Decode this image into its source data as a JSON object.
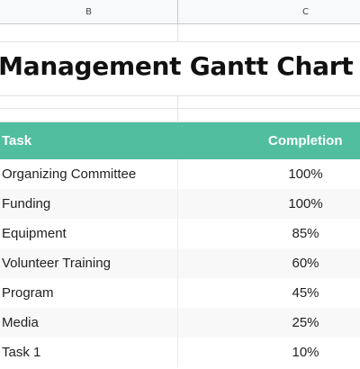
{
  "columns": {
    "b": "B",
    "c": "C"
  },
  "title": "nt Management Gantt Chart",
  "table": {
    "headers": {
      "task": "Task",
      "completion": "Completion"
    },
    "rows": [
      {
        "task": "Organizing Committee",
        "completion": "100%"
      },
      {
        "task": "Funding",
        "completion": "100%"
      },
      {
        "task": "Equipment",
        "completion": "85%"
      },
      {
        "task": "Volunteer Training",
        "completion": "60%"
      },
      {
        "task": "Program",
        "completion": "45%"
      },
      {
        "task": "Media",
        "completion": "25%"
      },
      {
        "task": "Task 1",
        "completion": "10%"
      }
    ]
  },
  "colors": {
    "header_bg": "#52bea0",
    "header_text": "#ffffff",
    "alt_row_bg": "#f8f8f8"
  }
}
